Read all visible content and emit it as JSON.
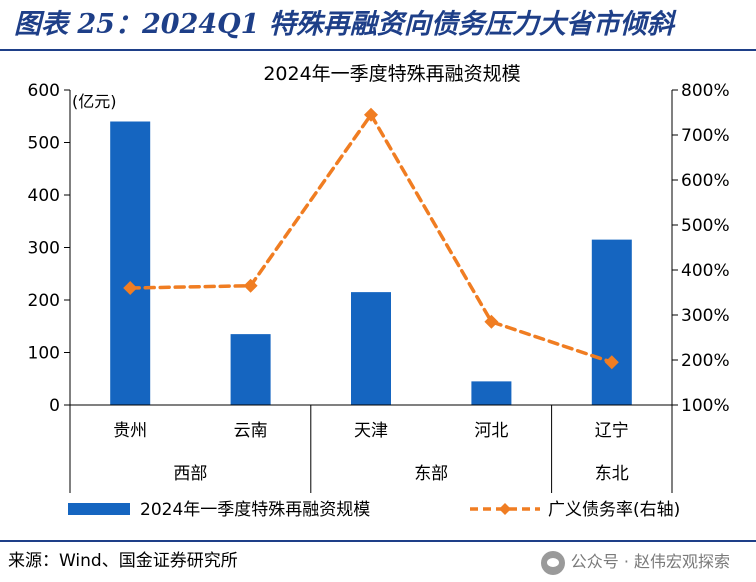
{
  "figure": {
    "title": "图表 25：2024Q1 特殊再融资向债务压力大省市倾斜",
    "source": "来源：Wind、国金证券研究所",
    "watermark": "公众号 · 赵伟宏观探索"
  },
  "chart_data": {
    "type": "bar",
    "title": "2024年一季度特殊再融资规模",
    "unit_label": "(亿元)",
    "categories": [
      "贵州",
      "云南",
      "天津",
      "河北",
      "辽宁"
    ],
    "groups": [
      {
        "label": "西部",
        "count": 2
      },
      {
        "label": "东部",
        "count": 2
      },
      {
        "label": "东北",
        "count": 1
      }
    ],
    "series": [
      {
        "name": "2024年一季度特殊再融资规模",
        "type": "bar",
        "axis": "left",
        "color": "#1565c0",
        "values": [
          540,
          135,
          215,
          45,
          315
        ]
      },
      {
        "name": "广义债务率(右轴)",
        "type": "line",
        "axis": "right",
        "color": "#f07d22",
        "values": [
          360,
          365,
          745,
          285,
          195
        ]
      }
    ],
    "yleft": {
      "min": 0,
      "max": 600,
      "ticks": [
        "0",
        "100",
        "200",
        "300",
        "400",
        "500",
        "600"
      ]
    },
    "yright": {
      "min": 100,
      "max": 800,
      "ticks": [
        "100%",
        "200%",
        "300%",
        "400%",
        "500%",
        "600%",
        "700%",
        "800%"
      ]
    },
    "legend_position": "bottom",
    "grid": false
  }
}
